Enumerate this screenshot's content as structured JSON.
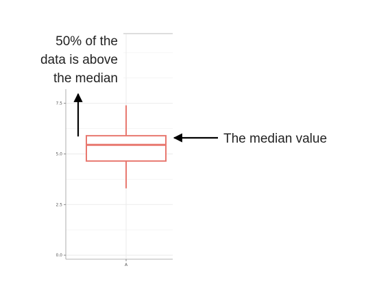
{
  "chart_data": {
    "type": "box",
    "categories": [
      "A"
    ],
    "boxes": [
      {
        "category": "A",
        "lower_whisker": 3.3,
        "q1": 4.65,
        "median": 5.45,
        "q3": 5.9,
        "upper_whisker": 7.4
      }
    ],
    "ylim": [
      -0.2,
      8.2
    ],
    "y_ticks": [
      0.0,
      2.5,
      5.0,
      7.5
    ],
    "y_tick_labels": [
      "0.0",
      "2.5",
      "5.0",
      "7.5"
    ],
    "x_tick_labels": [
      "A"
    ],
    "xlabel": "",
    "ylabel": "",
    "grid": true,
    "colors": {
      "box": "#e8776e",
      "grid": "#ebebeb",
      "axis": "#6e6e6e",
      "arrow": "#000000"
    }
  },
  "annotations": {
    "above_median": [
      "50% of the",
      "data is above",
      "the median"
    ],
    "median_value": "The median value"
  }
}
